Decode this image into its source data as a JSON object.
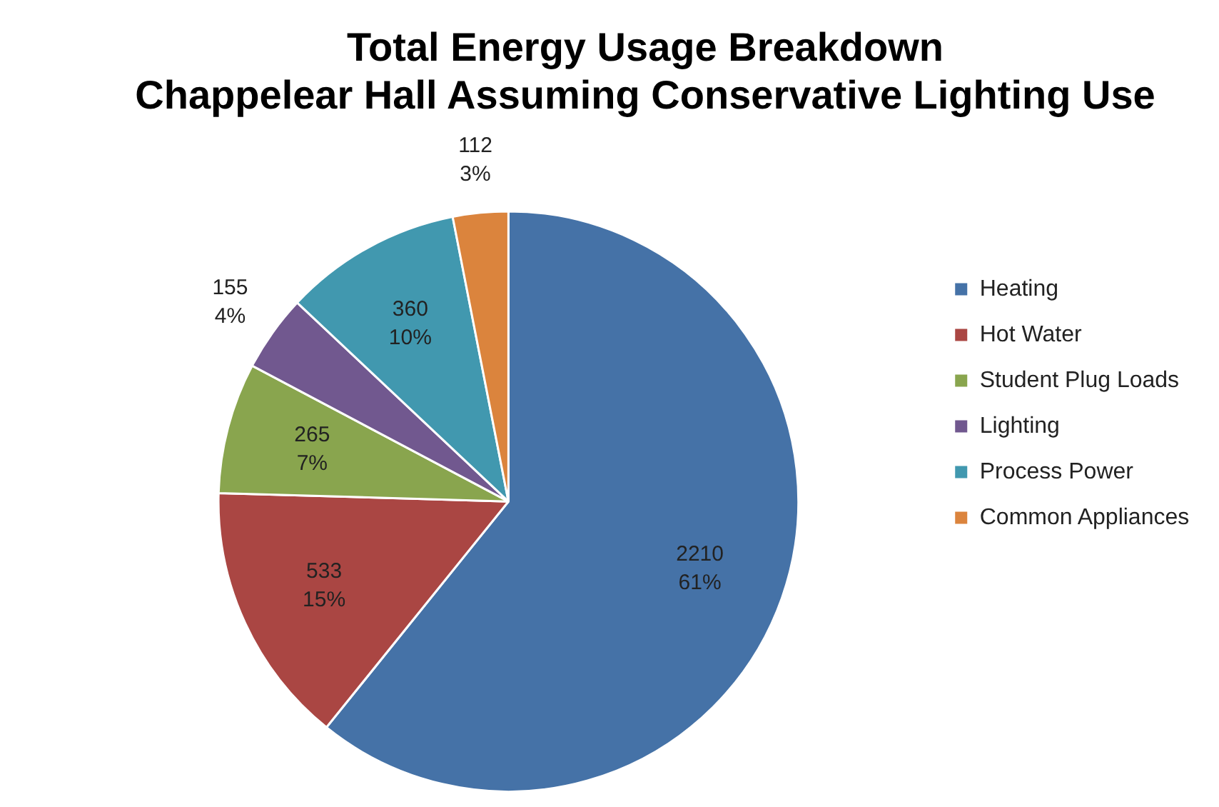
{
  "chart_data": {
    "type": "pie",
    "title": "Total Energy Usage Breakdown\nChappelear Hall Assuming Conservative Lighting Use",
    "categories": [
      "Heating",
      "Hot Water",
      "Student Plug Loads",
      "Lighting",
      "Process Power",
      "Common Appliances"
    ],
    "values": [
      2210,
      533,
      265,
      155,
      360,
      112
    ],
    "colors": [
      "#4572a7",
      "#aa4643",
      "#89a54e",
      "#71588f",
      "#4198af",
      "#db843d"
    ],
    "value_labels": [
      "2210\n61%",
      "533\n15%",
      "265\n7%",
      "155\n4%",
      "360\n10%",
      "112\n3%"
    ],
    "legend": "right"
  }
}
